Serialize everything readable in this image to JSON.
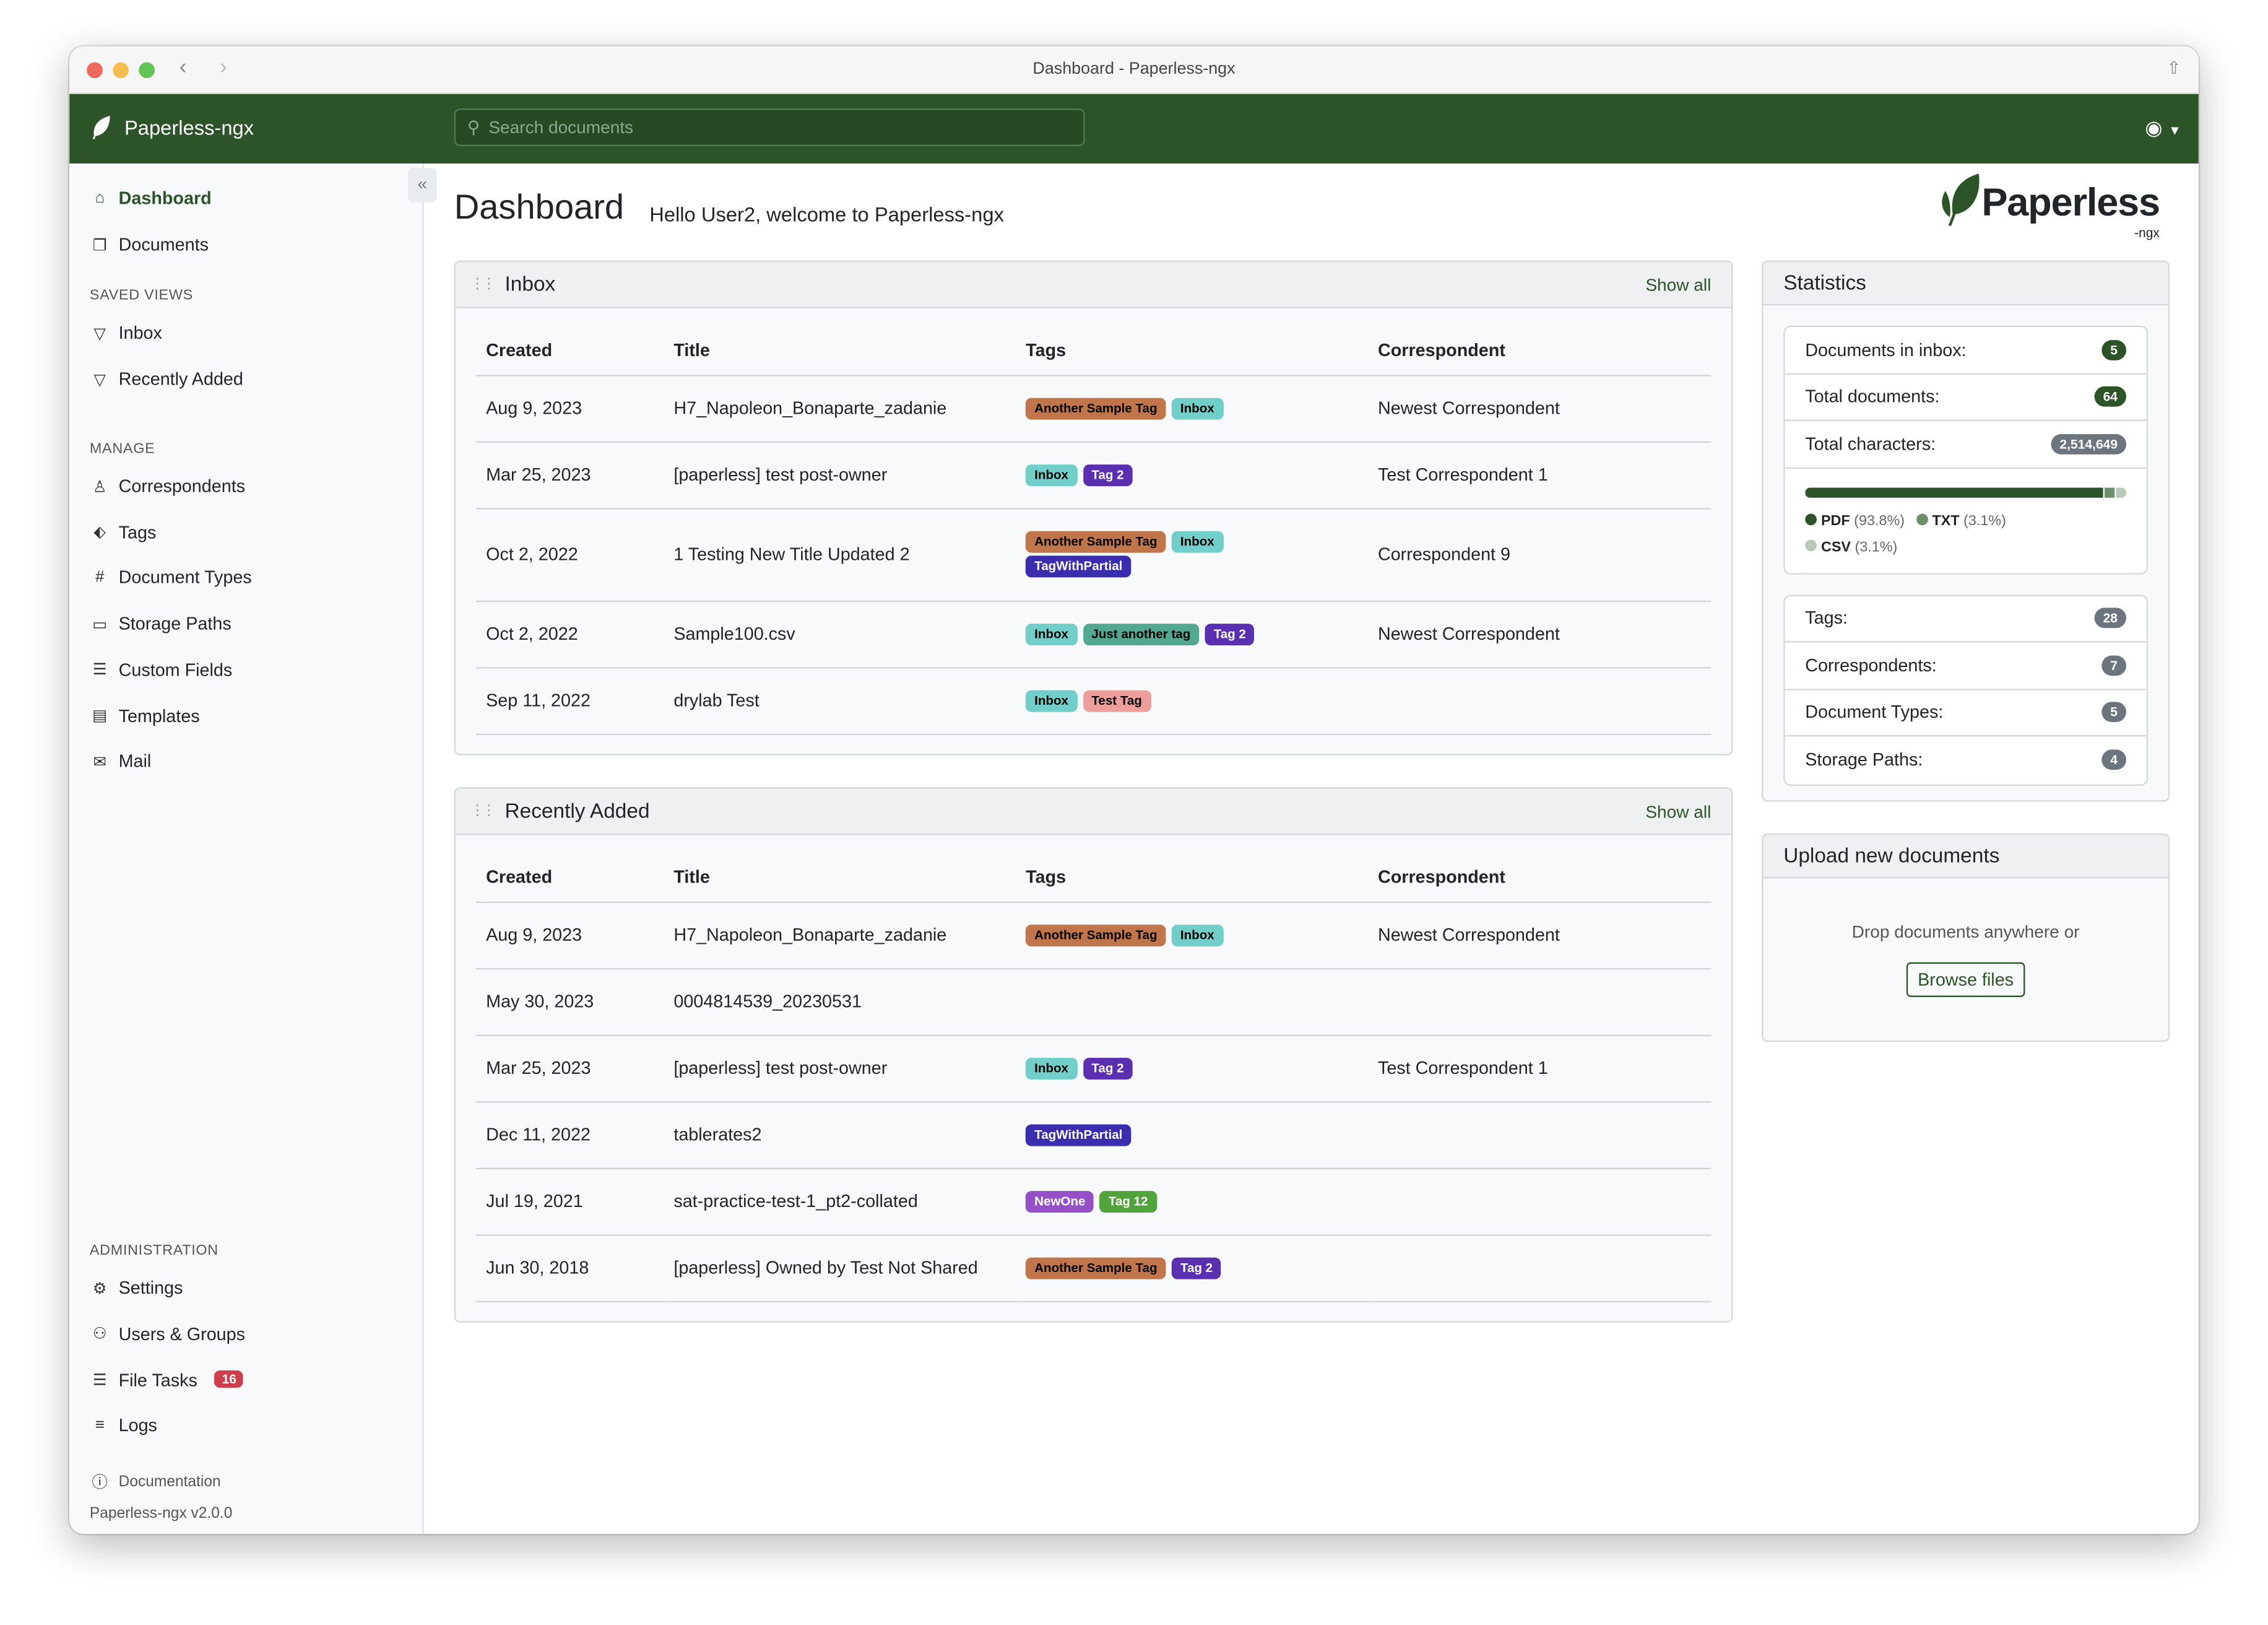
{
  "window": {
    "title": "Dashboard - Paperless-ngx"
  },
  "navbar": {
    "brand": "Paperless-ngx",
    "search_placeholder": "Search documents",
    "color": "#2c5428"
  },
  "sidebar": {
    "main": [
      {
        "label": "Dashboard",
        "icon": "house-icon",
        "active": true
      },
      {
        "label": "Documents",
        "icon": "files-icon"
      }
    ],
    "saved_views_heading": "SAVED VIEWS",
    "saved_views": [
      {
        "label": "Inbox",
        "icon": "funnel-icon"
      },
      {
        "label": "Recently Added",
        "icon": "funnel-icon"
      }
    ],
    "manage_heading": "MANAGE",
    "manage": [
      {
        "label": "Correspondents",
        "icon": "person-icon"
      },
      {
        "label": "Tags",
        "icon": "tags-icon"
      },
      {
        "label": "Document Types",
        "icon": "hash-icon"
      },
      {
        "label": "Storage Paths",
        "icon": "folder-icon"
      },
      {
        "label": "Custom Fields",
        "icon": "ui-radios-icon"
      },
      {
        "label": "Templates",
        "icon": "file-earmark-ruled-icon"
      },
      {
        "label": "Mail",
        "icon": "envelope-icon"
      }
    ],
    "admin_heading": "ADMINISTRATION",
    "admin": [
      {
        "label": "Settings",
        "icon": "gear-icon"
      },
      {
        "label": "Users & Groups",
        "icon": "people-icon"
      },
      {
        "label": "File Tasks",
        "icon": "list-task-icon",
        "badge": "16"
      },
      {
        "label": "Logs",
        "icon": "text-left-icon"
      }
    ],
    "documentation": "Documentation",
    "version": "Paperless-ngx v2.0.0"
  },
  "header": {
    "title": "Dashboard",
    "welcome": "Hello User2, welcome to Paperless-ngx",
    "logo_text": "Paperless",
    "logo_sub": "-ngx"
  },
  "columns": [
    "Created",
    "Title",
    "Tags",
    "Correspondent"
  ],
  "inbox": {
    "title": "Inbox",
    "show_all": "Show all",
    "rows": [
      {
        "created": "Aug 9, 2023",
        "title": "H7_Napoleon_Bonaparte_zadanie",
        "tags": [
          "Another Sample Tag",
          "Inbox"
        ],
        "correspondent": "Newest Correspondent"
      },
      {
        "created": "Mar 25, 2023",
        "title": "[paperless] test post-owner",
        "tags": [
          "Inbox",
          "Tag 2"
        ],
        "correspondent": "Test Correspondent 1"
      },
      {
        "created": "Oct 2, 2022",
        "title": "1 Testing New Title Updated 2",
        "tags": [
          "Another Sample Tag",
          "Inbox",
          "TagWithPartial"
        ],
        "correspondent": "Correspondent 9"
      },
      {
        "created": "Oct 2, 2022",
        "title": "Sample100.csv",
        "tags": [
          "Inbox",
          "Just another tag",
          "Tag 2"
        ],
        "correspondent": "Newest Correspondent"
      },
      {
        "created": "Sep 11, 2022",
        "title": "drylab Test",
        "tags": [
          "Inbox",
          "Test Tag"
        ],
        "correspondent": ""
      }
    ]
  },
  "recent": {
    "title": "Recently Added",
    "show_all": "Show all",
    "rows": [
      {
        "created": "Aug 9, 2023",
        "title": "H7_Napoleon_Bonaparte_zadanie",
        "tags": [
          "Another Sample Tag",
          "Inbox"
        ],
        "correspondent": "Newest Correspondent"
      },
      {
        "created": "May 30, 2023",
        "title": "0004814539_20230531",
        "tags": [],
        "correspondent": ""
      },
      {
        "created": "Mar 25, 2023",
        "title": "[paperless] test post-owner",
        "tags": [
          "Inbox",
          "Tag 2"
        ],
        "correspondent": "Test Correspondent 1"
      },
      {
        "created": "Dec 11, 2022",
        "title": "tablerates2",
        "tags": [
          "TagWithPartial"
        ],
        "correspondent": ""
      },
      {
        "created": "Jul 19, 2021",
        "title": "sat-practice-test-1_pt2-collated",
        "tags": [
          "NewOne",
          "Tag 12"
        ],
        "correspondent": ""
      },
      {
        "created": "Jun 30, 2018",
        "title": "[paperless] Owned by Test Not Shared",
        "tags": [
          "Another Sample Tag",
          "Tag 2"
        ],
        "correspondent": ""
      }
    ]
  },
  "tag_colors": {
    "Another Sample Tag": {
      "bg": "#c0764a",
      "fg": "#000000"
    },
    "Inbox": {
      "bg": "#72cec8",
      "fg": "#000000"
    },
    "Tag 2": {
      "bg": "#5a2fb0",
      "fg": "#ffffff"
    },
    "TagWithPartial": {
      "bg": "#3a2eae",
      "fg": "#ffffff"
    },
    "Just another tag": {
      "bg": "#53a98f",
      "fg": "#000000"
    },
    "Test Tag": {
      "bg": "#ee9e9a",
      "fg": "#000000"
    },
    "NewOne": {
      "bg": "#9550c8",
      "fg": "#ffffff"
    },
    "Tag 12": {
      "bg": "#52a33e",
      "fg": "#ffffff"
    }
  },
  "statistics": {
    "title": "Statistics",
    "top": [
      {
        "label": "Documents in inbox:",
        "value": "5",
        "color": "#2c5428"
      },
      {
        "label": "Total documents:",
        "value": "64",
        "color": "#2c5428"
      },
      {
        "label": "Total characters:",
        "value": "2,514,649",
        "color": "#6c757d"
      }
    ],
    "file_types": [
      {
        "name": "PDF",
        "percent": 93.8,
        "label": "(93.8%)",
        "color": "#2c5428"
      },
      {
        "name": "TXT",
        "percent": 3.1,
        "label": "(3.1%)",
        "color": "#6f8f6c"
      },
      {
        "name": "CSV",
        "percent": 3.1,
        "label": "(3.1%)",
        "color": "#b9c9b7"
      }
    ],
    "bottom": [
      {
        "label": "Tags:",
        "value": "28"
      },
      {
        "label": "Correspondents:",
        "value": "7"
      },
      {
        "label": "Document Types:",
        "value": "5"
      },
      {
        "label": "Storage Paths:",
        "value": "4"
      }
    ]
  },
  "upload": {
    "title": "Upload new documents",
    "hint": "Drop documents anywhere or",
    "button": "Browse files"
  }
}
